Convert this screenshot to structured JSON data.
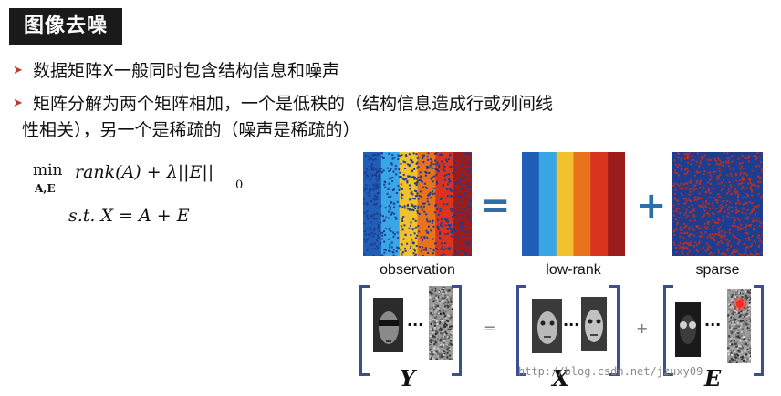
{
  "title": "图像去噪",
  "bullets": [
    {
      "text": "数据矩阵X一般同时包含结构信息和噪声"
    },
    {
      "line1": "矩阵分解为两个矩阵相加，一个是低秩的（结构信息造成行或列间线",
      "line2": "性相关），另一个是稀疏的（噪声是稀疏的）"
    }
  ],
  "formula": {
    "min": "min",
    "min_sub": "A,E",
    "objective": "rank(A) + λ||E||",
    "norm_sub": "0",
    "constraint": "s.t. X = A + E"
  },
  "figure": {
    "operators": {
      "equals": "=",
      "plus": "+"
    },
    "captions": {
      "observation": "observation",
      "lowrank": "low-rank",
      "sparse": "sparse"
    },
    "dots": "···",
    "small_ops": {
      "equals": "=",
      "plus": "+"
    },
    "matrix_labels": {
      "y": "Y",
      "x": "X",
      "e": "E"
    },
    "lowrank_colors": [
      "#1f5fb8",
      "#39a6e6",
      "#f2c12e",
      "#e8731c",
      "#d9341d",
      "#9c1c1c"
    ],
    "sparse_bg": "#1e3d8f",
    "noise_color": "#b0302a"
  },
  "watermark": "http://blog.csdn.net/jzuxy09"
}
